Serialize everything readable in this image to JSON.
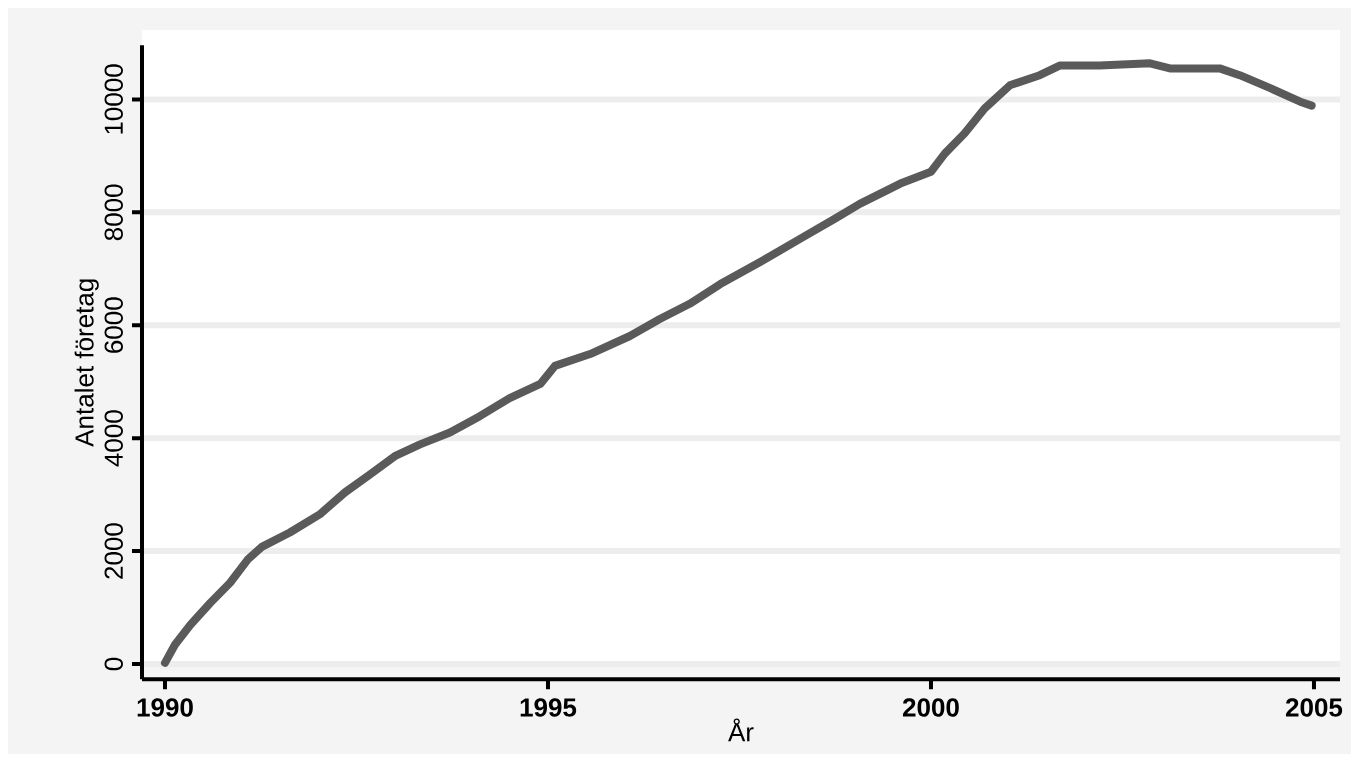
{
  "chart_data": {
    "type": "line",
    "xlabel": "År",
    "ylabel": "Antalet företag",
    "x": [
      1990.0,
      1990.13,
      1990.33,
      1990.59,
      1990.85,
      1991.08,
      1991.27,
      1991.63,
      1992.02,
      1992.35,
      1992.68,
      1993.0,
      1993.33,
      1993.72,
      1994.11,
      1994.5,
      1994.9,
      1995.09,
      1995.55,
      1996.07,
      1996.46,
      1996.85,
      1997.25,
      1997.77,
      1998.29,
      1998.75,
      1999.07,
      1999.6,
      2000.0,
      2000.18,
      2000.44,
      2000.7,
      2001.03,
      2001.42,
      2001.68,
      2002.2,
      2002.86,
      2003.12,
      2003.77,
      2004.03,
      2004.43,
      2004.82,
      2004.97
    ],
    "values": [
      20,
      340,
      690,
      1080,
      1440,
      1850,
      2080,
      2330,
      2650,
      3040,
      3360,
      3680,
      3890,
      4100,
      4390,
      4710,
      4960,
      5280,
      5490,
      5810,
      6110,
      6380,
      6730,
      7120,
      7530,
      7890,
      8150,
      8510,
      8720,
      9040,
      9400,
      9840,
      10250,
      10430,
      10600,
      10600,
      10640,
      10550,
      10550,
      10430,
      10200,
      9960,
      9890
    ],
    "color": "#5a5a5a",
    "xlim": [
      1989.7,
      2005.34
    ],
    "ylim": [
      -270,
      10960
    ],
    "xticks": [
      1990,
      1995,
      2000,
      2005
    ],
    "yticks": [
      0,
      2000,
      4000,
      6000,
      8000,
      10000
    ],
    "grid": "y"
  }
}
